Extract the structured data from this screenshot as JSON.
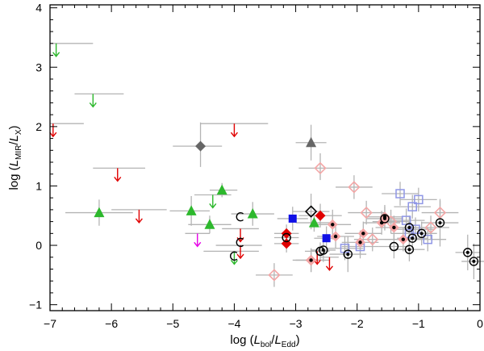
{
  "chart_data": {
    "type": "scatter",
    "xlabel": {
      "pre": "log (",
      "a": "L",
      "a_sub": "bol",
      "sep": "/",
      "b": "L",
      "b_sub": "Edd",
      "post": ")"
    },
    "ylabel": {
      "pre": "log (",
      "a": "L",
      "a_sub": "MIR",
      "sep": "/",
      "b": "L",
      "b_sub": "X",
      "post": ")"
    },
    "xlim": [
      -7,
      0
    ],
    "ylim": [
      -1.1,
      4.05
    ],
    "x_ticks": [
      -7,
      -6,
      -5,
      -4,
      -3,
      -2,
      -1,
      0
    ],
    "y_ticks": [
      -1,
      0,
      1,
      2,
      3,
      4
    ],
    "grid": false,
    "legend": "none",
    "colors": {
      "green": "#2db82d",
      "red": "#e00000",
      "pink": "#f4a6a6",
      "lightblue": "#8f96e6",
      "blue": "#1010e6",
      "magenta": "#e600e6",
      "gray": "#666666",
      "errorbar": "#b4b4b4",
      "black": "#000000"
    },
    "series": [
      {
        "marker": "triangle-up",
        "color": "green",
        "points": [
          {
            "x": -6.2,
            "y": 0.55,
            "xerr": [
              0.55,
              0.55
            ],
            "yerr": [
              0.22,
              0.22
            ]
          },
          {
            "x": -4.7,
            "y": 0.58,
            "xerr": [
              0.35,
              0.3
            ],
            "yerr": [
              0.25,
              0.25
            ]
          },
          {
            "x": -4.4,
            "y": 0.35,
            "xerr": [
              0.35,
              0.35
            ],
            "yerr": [
              0.15,
              0.15
            ]
          },
          {
            "x": -4.2,
            "y": 0.93,
            "xerr": [
              0.2,
              0.25
            ],
            "yerr": [
              0.12,
              0.12
            ]
          },
          {
            "x": -3.7,
            "y": 0.53,
            "xerr": [
              0.35,
              0.35
            ],
            "yerr": [
              0.2,
              0.2
            ]
          },
          {
            "x": -2.7,
            "y": 0.38,
            "xerr": [
              0.3,
              0.3
            ],
            "yerr": [
              0.15,
              0.15
            ]
          }
        ]
      },
      {
        "marker": "arrow-down",
        "color": "green",
        "points": [
          {
            "x": -6.9,
            "y": 3.4,
            "xerr": [
              0.1,
              0.6
            ],
            "yerr": [
              0,
              0
            ]
          },
          {
            "x": -6.3,
            "y": 2.55,
            "xerr": [
              0.3,
              0.5
            ],
            "yerr": [
              0,
              0
            ]
          },
          {
            "x": -4.35,
            "y": 0.85,
            "xerr": [
              0.3,
              0.3
            ],
            "yerr": [
              0,
              0
            ]
          },
          {
            "x": -4.0,
            "y": -0.1,
            "xerr": [
              0.5,
              0.4
            ],
            "yerr": [
              0,
              0
            ]
          }
        ]
      },
      {
        "marker": "arrow-down",
        "color": "red",
        "points": [
          {
            "x": -6.95,
            "y": 2.05,
            "xerr": [
              0.05,
              0.5
            ],
            "yerr": [
              0,
              0
            ]
          },
          {
            "x": -5.9,
            "y": 1.3,
            "xerr": [
              0.4,
              0.45
            ],
            "yerr": [
              0,
              0
            ]
          },
          {
            "x": -5.55,
            "y": 0.6,
            "xerr": [
              0.45,
              0.45
            ],
            "yerr": [
              0,
              0
            ]
          },
          {
            "x": -4.0,
            "y": 2.05,
            "xerr": [
              0.55,
              0.55
            ],
            "yerr": [
              0,
              0
            ]
          },
          {
            "x": -3.9,
            "y": 0.0,
            "xerr": [
              0.4,
              0.35
            ],
            "yerr": [
              0,
              0
            ]
          },
          {
            "x": -3.9,
            "y": 0.28,
            "xerr": [
              0.3,
              0.3
            ],
            "yerr": [
              0,
              0
            ]
          },
          {
            "x": -2.65,
            "y": -0.1,
            "xerr": [
              0.2,
              0.15
            ],
            "yerr": [
              0,
              0
            ]
          },
          {
            "x": -2.45,
            "y": -0.2,
            "xerr": [
              0.15,
              0.15
            ],
            "yerr": [
              0,
              0
            ]
          }
        ]
      },
      {
        "marker": "arrow-down",
        "color": "magenta",
        "points": [
          {
            "x": -4.6,
            "y": 0.2,
            "xerr": [
              0.2,
              0.2
            ],
            "yerr": [
              0,
              0
            ]
          }
        ]
      },
      {
        "marker": "diamond",
        "color": "red",
        "points": [
          {
            "x": -3.15,
            "y": 0.2,
            "xerr": [
              0.2,
              0.2
            ],
            "yerr": [
              0.15,
              0.15
            ]
          },
          {
            "x": -3.15,
            "y": 0.03,
            "xerr": [
              0.2,
              0.2
            ],
            "yerr": [
              0.15,
              0.15
            ]
          },
          {
            "x": -2.6,
            "y": 0.5,
            "xerr": [
              0.35,
              0.35
            ],
            "yerr": [
              0.2,
              0.2
            ]
          },
          {
            "x": -2.75,
            "y": -0.25,
            "xerr": [
              0.25,
              0.25
            ],
            "yerr": [
              0.2,
              0.2
            ]
          }
        ]
      },
      {
        "marker": "diamond-open",
        "color": "pink",
        "points": [
          {
            "x": -2.6,
            "y": 1.3,
            "xerr": [
              0.35,
              0.35
            ],
            "yerr": [
              0.2,
              0.25
            ]
          },
          {
            "x": -2.05,
            "y": 0.98,
            "xerr": [
              0.3,
              0.3
            ],
            "yerr": [
              0.2,
              0.2
            ]
          },
          {
            "x": -1.85,
            "y": 0.55,
            "xerr": [
              0.3,
              0.3
            ],
            "yerr": [
              0.2,
              0.2
            ]
          },
          {
            "x": -3.35,
            "y": -0.5,
            "xerr": [
              0.3,
              0.3
            ],
            "yerr": [
              0.2,
              0.2
            ]
          },
          {
            "x": -0.65,
            "y": 0.55,
            "xerr": [
              0.3,
              0.3
            ],
            "yerr": [
              0.2,
              0.2
            ]
          },
          {
            "x": -1.45,
            "y": 0.4,
            "xerr": [
              0.3,
              0.3
            ],
            "yerr": [
              0.2,
              0.2
            ]
          },
          {
            "x": -0.8,
            "y": 0.3,
            "xerr": [
              0.3,
              0.3
            ],
            "yerr": [
              0.2,
              0.2
            ]
          },
          {
            "x": -1.75,
            "y": 0.1,
            "xerr": [
              0.3,
              0.3
            ],
            "yerr": [
              0.2,
              0.2
            ]
          }
        ]
      },
      {
        "marker": "diamond-open",
        "color": "black",
        "points": [
          {
            "x": -2.75,
            "y": 0.57,
            "xerr": [
              0.3,
              0.3
            ],
            "yerr": [
              0.3,
              0.3
            ]
          }
        ]
      },
      {
        "marker": "square",
        "color": "blue",
        "points": [
          {
            "x": -3.05,
            "y": 0.45,
            "xerr": [
              0.25,
              0.25
            ],
            "yerr": [
              0.2,
              0.2
            ]
          },
          {
            "x": -2.5,
            "y": 0.12,
            "xerr": [
              0.2,
              0.2
            ],
            "yerr": [
              0.2,
              0.2
            ]
          }
        ]
      },
      {
        "marker": "square-open",
        "color": "lightblue",
        "points": [
          {
            "x": -1.3,
            "y": 0.87,
            "xerr": [
              0.3,
              0.3
            ],
            "yerr": [
              0.2,
              0.2
            ]
          },
          {
            "x": -1.0,
            "y": 0.77,
            "xerr": [
              0.3,
              0.3
            ],
            "yerr": [
              0.2,
              0.2
            ]
          },
          {
            "x": -1.1,
            "y": 0.65,
            "xerr": [
              0.3,
              0.3
            ],
            "yerr": [
              0.2,
              0.2
            ]
          },
          {
            "x": -1.2,
            "y": 0.42,
            "xerr": [
              0.3,
              0.3
            ],
            "yerr": [
              0.2,
              0.2
            ]
          },
          {
            "x": -1.05,
            "y": 0.27,
            "xerr": [
              0.3,
              0.3
            ],
            "yerr": [
              0.2,
              0.2
            ]
          },
          {
            "x": -0.85,
            "y": 0.1,
            "xerr": [
              0.3,
              0.3
            ],
            "yerr": [
              0.2,
              0.2
            ]
          },
          {
            "x": -1.15,
            "y": 0.2,
            "xerr": [
              0.3,
              0.3
            ],
            "yerr": [
              0.2,
              0.2
            ]
          },
          {
            "x": -2.2,
            "y": -0.05,
            "xerr": [
              0.3,
              0.3
            ],
            "yerr": [
              0.2,
              0.2
            ]
          },
          {
            "x": -1.95,
            "y": -0.02,
            "xerr": [
              0.3,
              0.3
            ],
            "yerr": [
              0.2,
              0.2
            ]
          }
        ]
      },
      {
        "marker": "pink-diamond-dot",
        "color": "pink",
        "points": [
          {
            "x": -2.4,
            "y": 0.35,
            "xerr": [
              0.3,
              0.3
            ],
            "yerr": [
              0.25,
              0.25
            ]
          },
          {
            "x": -2.35,
            "y": 0.15,
            "xerr": [
              0.3,
              0.3
            ],
            "yerr": [
              0.2,
              0.2
            ]
          },
          {
            "x": -1.9,
            "y": 0.2,
            "xerr": [
              0.3,
              0.3
            ],
            "yerr": [
              0.2,
              0.2
            ]
          },
          {
            "x": -1.95,
            "y": 0.05,
            "xerr": [
              0.3,
              0.3
            ],
            "yerr": [
              0.2,
              0.2
            ]
          },
          {
            "x": -2.75,
            "y": -0.25,
            "xerr": [
              0.3,
              0.3
            ],
            "yerr": [
              0.2,
              0.2
            ]
          },
          {
            "x": -1.4,
            "y": 0.3,
            "xerr": [
              0.3,
              0.3
            ],
            "yerr": [
              0.2,
              0.2
            ]
          },
          {
            "x": -1.55,
            "y": 0.48,
            "xerr": [
              0.3,
              0.3
            ],
            "yerr": [
              0.2,
              0.2
            ]
          },
          {
            "x": -1.6,
            "y": 0.38,
            "xerr": [
              0.3,
              0.3
            ],
            "yerr": [
              0.2,
              0.2
            ]
          },
          {
            "x": -1.25,
            "y": 0.1,
            "xerr": [
              0.3,
              0.3
            ],
            "yerr": [
              0.2,
              0.2
            ]
          }
        ]
      },
      {
        "marker": "circle-dot",
        "color": "black",
        "points": [
          {
            "x": -2.55,
            "y": -0.08,
            "xerr": [
              0.2,
              0.2
            ],
            "yerr": [
              0.2,
              0.2
            ]
          },
          {
            "x": -2.15,
            "y": -0.15,
            "xerr": [
              0.3,
              0.3
            ],
            "yerr": [
              0.3,
              0.3
            ]
          },
          {
            "x": -1.55,
            "y": 0.45,
            "xerr": [
              0.3,
              0.3
            ],
            "yerr": [
              0.2,
              0.2
            ]
          },
          {
            "x": -1.15,
            "y": 0.3,
            "xerr": [
              0.25,
              0.25
            ],
            "yerr": [
              0.2,
              0.2
            ]
          },
          {
            "x": -1.1,
            "y": 0.12,
            "xerr": [
              0.25,
              0.25
            ],
            "yerr": [
              0.2,
              0.2
            ]
          },
          {
            "x": -1.15,
            "y": -0.07,
            "xerr": [
              0.25,
              0.25
            ],
            "yerr": [
              0.2,
              0.2
            ]
          },
          {
            "x": -0.95,
            "y": 0.2,
            "xerr": [
              0.25,
              0.25
            ],
            "yerr": [
              0.2,
              0.2
            ]
          },
          {
            "x": -0.65,
            "y": 0.38,
            "xerr": [
              0.3,
              0.3
            ],
            "yerr": [
              0.4,
              0.4
            ]
          },
          {
            "x": -0.2,
            "y": -0.12,
            "xerr": [
              0.2,
              0.2
            ],
            "yerr": [
              0.3,
              0.3
            ]
          },
          {
            "x": -0.1,
            "y": -0.27,
            "xerr": [
              0.2,
              0.2
            ],
            "yerr": [
              0.3,
              0.3
            ]
          }
        ]
      },
      {
        "marker": "circle-open",
        "color": "black",
        "points": [
          {
            "x": -3.15,
            "y": 0.13,
            "xerr": [
              0.2,
              0.2
            ],
            "yerr": [
              0.15,
              0.15
            ]
          },
          {
            "x": -2.6,
            "y": -0.1,
            "xerr": [
              0.15,
              0.15
            ],
            "yerr": [
              0.15,
              0.15
            ]
          },
          {
            "x": -1.4,
            "y": -0.02,
            "xerr": [
              0.25,
              0.25
            ],
            "yerr": [
              0.2,
              0.2
            ]
          }
        ]
      },
      {
        "marker": "c-open",
        "color": "black",
        "points": [
          {
            "x": -3.9,
            "y": 0.48
          },
          {
            "x": -3.9,
            "y": 0.05
          },
          {
            "x": -4.0,
            "y": -0.18
          }
        ]
      },
      {
        "marker": "diamond",
        "color": "gray",
        "points": [
          {
            "x": -4.55,
            "y": 1.67,
            "xerr": [
              0.45,
              0.35
            ],
            "yerr": [
              0.35,
              0.4
            ]
          }
        ]
      },
      {
        "marker": "triangle-up",
        "color": "gray",
        "points": [
          {
            "x": -2.75,
            "y": 1.73,
            "xerr": [
              0.25,
              0.25
            ],
            "yerr": [
              0.3,
              0.3
            ]
          }
        ]
      }
    ]
  }
}
